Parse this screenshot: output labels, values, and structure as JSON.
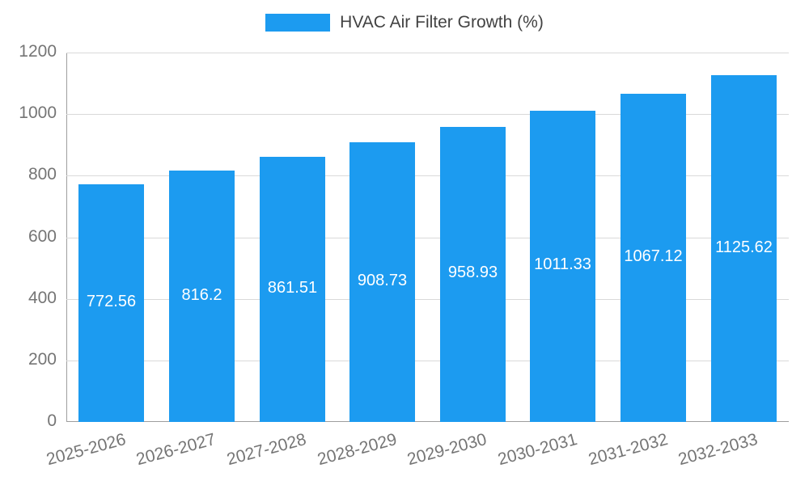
{
  "chart_data": {
    "type": "bar",
    "title": "HVAC Air Filter Growth (%)",
    "categories": [
      "2025-2026",
      "2026-2027",
      "2027-2028",
      "2028-2029",
      "2029-2030",
      "2030-2031",
      "2031-2032",
      "2032-2033"
    ],
    "values": [
      772.56,
      816.2,
      861.51,
      908.73,
      958.93,
      1011.33,
      1067.12,
      1125.62
    ],
    "value_labels": [
      "772.56",
      "816.2",
      "861.51",
      "908.73",
      "958.93",
      "1011.33",
      "1067.12",
      "1125.62"
    ],
    "xlabel": "",
    "ylabel": "",
    "ylim": [
      0,
      1200
    ],
    "yticks": [
      0,
      200,
      400,
      600,
      800,
      1000,
      1200
    ],
    "grid": true,
    "legend_position": "top-center",
    "colors": {
      "bar": "#1c9bf0",
      "value_label": "#ffffff",
      "axis_text": "#757575",
      "grid": "#d9d9d9",
      "axis_line": "#9e9e9e",
      "legend_text": "#424242"
    }
  }
}
